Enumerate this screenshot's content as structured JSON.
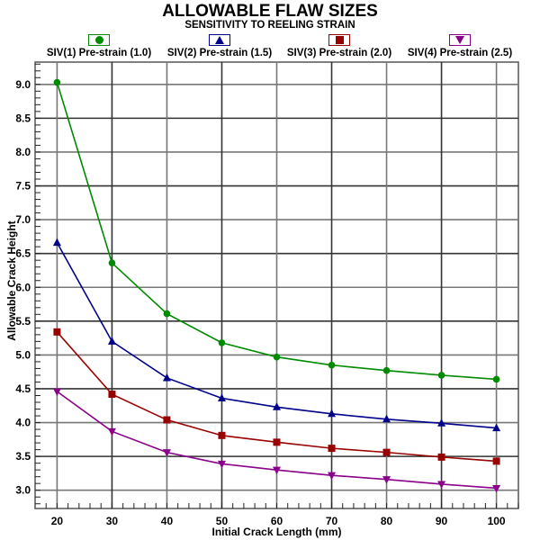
{
  "title": "ALLOWABLE FLAW SIZES",
  "subtitle": "SENSITIVITY TO REELING STRAIN",
  "chart_data": {
    "type": "line",
    "title": "ALLOWABLE FLAW SIZES",
    "subtitle": "SENSITIVITY TO REELING STRAIN",
    "xlabel": "Initial Crack Length (mm)",
    "ylabel": "Allowable Crack Height",
    "x": [
      20,
      30,
      40,
      50,
      60,
      70,
      80,
      90,
      100
    ],
    "xticks": [
      20,
      30,
      40,
      50,
      60,
      70,
      80,
      90,
      100
    ],
    "yticks": [
      3.0,
      3.5,
      4.0,
      4.5,
      5.0,
      5.5,
      6.0,
      6.5,
      7.0,
      7.5,
      8.0,
      8.5,
      9.0
    ],
    "ytick_labels": [
      "3.0",
      "3.5",
      "4.0",
      "4.5",
      "5.0",
      "5.5",
      "6.0",
      "6.5",
      "7.0",
      "7.5",
      "8.0",
      "8.5",
      "9.0"
    ],
    "xlim": [
      16,
      104
    ],
    "ylim": [
      2.73,
      9.33
    ],
    "grid": true,
    "legend_position": "top",
    "series": [
      {
        "name": "SIV(1) Pre-strain (1.0)",
        "color": "#008a00",
        "marker": "circle",
        "values": [
          9.03,
          6.36,
          5.61,
          5.18,
          4.97,
          4.85,
          4.77,
          4.7,
          4.64
        ]
      },
      {
        "name": "SIV(2) Pre-strain (1.5)",
        "color": "#00008b",
        "marker": "triangle-up",
        "values": [
          6.66,
          5.2,
          4.66,
          4.36,
          4.23,
          4.13,
          4.05,
          3.99,
          3.92
        ]
      },
      {
        "name": "SIV(3) Pre-strain (2.0)",
        "color": "#990000",
        "marker": "square",
        "values": [
          5.34,
          4.42,
          4.04,
          3.81,
          3.71,
          3.62,
          3.56,
          3.49,
          3.43
        ]
      },
      {
        "name": "SIV(4) Pre-strain (2.5)",
        "color": "#8b008b",
        "marker": "triangle-down",
        "values": [
          4.46,
          3.87,
          3.56,
          3.39,
          3.3,
          3.22,
          3.16,
          3.09,
          3.03
        ]
      }
    ]
  }
}
